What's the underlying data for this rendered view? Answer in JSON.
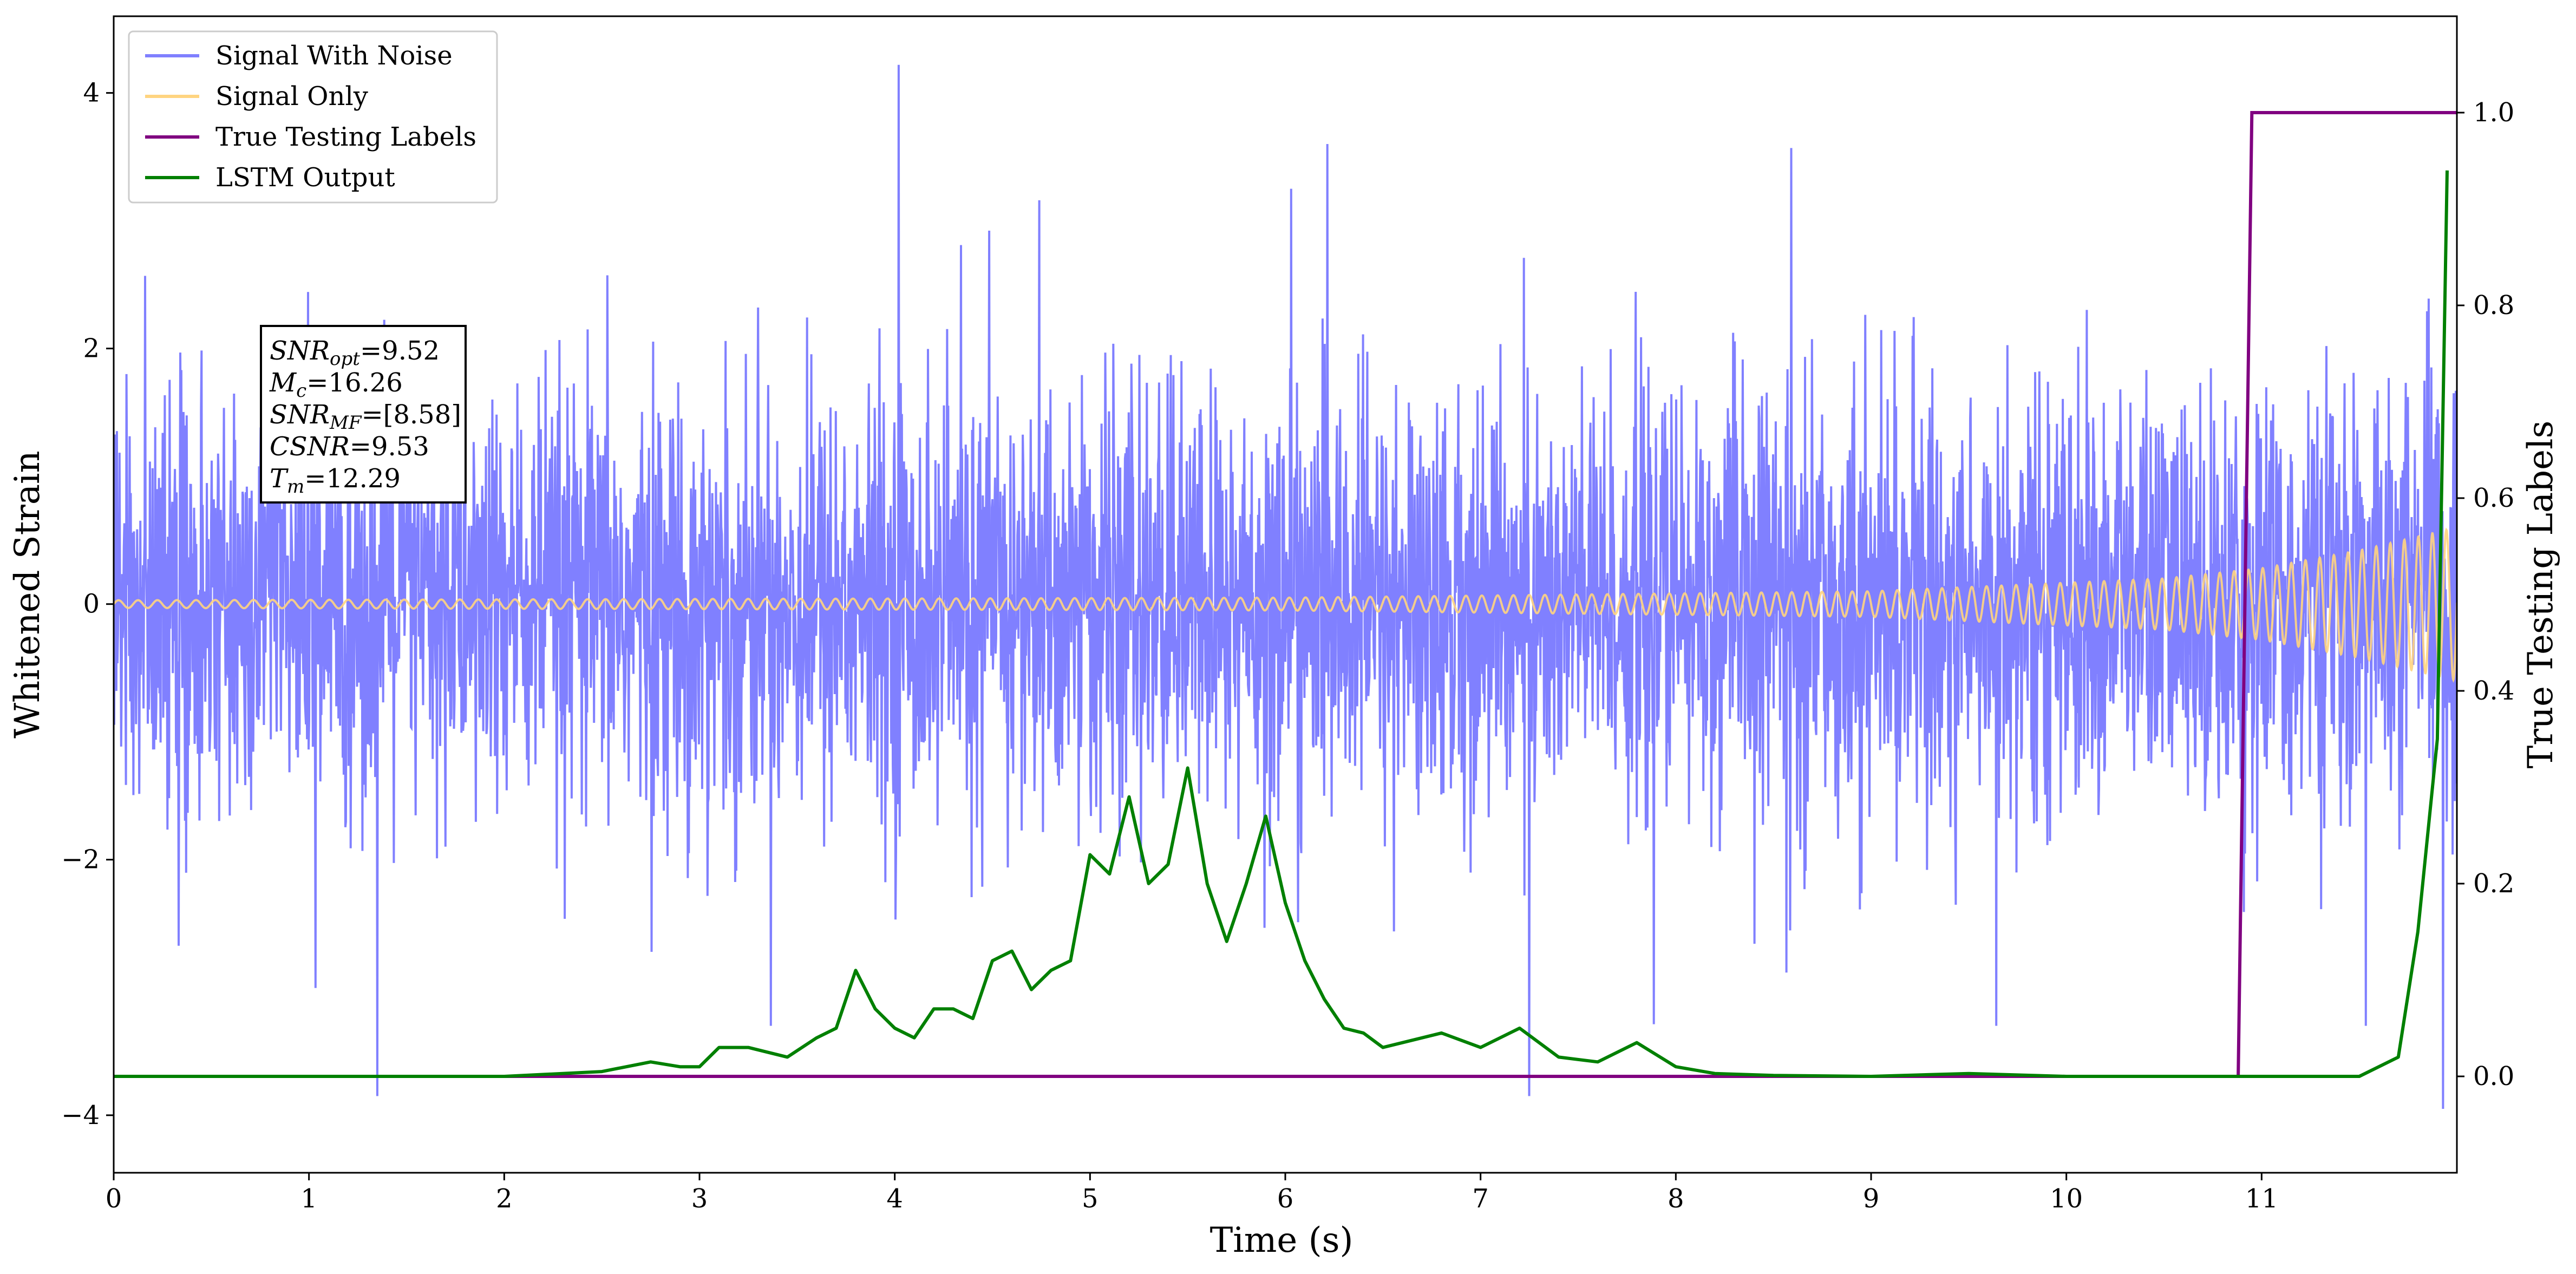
{
  "chart_data": {
    "type": "line",
    "title": "",
    "xlabel": "Time (s)",
    "ylabel": "Whitened Strain",
    "y2label": "True Testing Labels",
    "xlim": [
      0,
      12.0
    ],
    "ylim": [
      -4.45,
      4.6
    ],
    "y2lim": [
      -0.1,
      1.1
    ],
    "xticks": [
      0,
      1,
      2,
      3,
      4,
      5,
      6,
      7,
      8,
      9,
      10,
      11
    ],
    "xtick_labels": [
      "0",
      "1",
      "2",
      "3",
      "4",
      "5",
      "6",
      "7",
      "8",
      "9",
      "10",
      "11"
    ],
    "yticks": [
      -4,
      -2,
      0,
      2,
      4
    ],
    "ytick_labels": [
      "−4",
      "−2",
      "0",
      "2",
      "4"
    ],
    "y2ticks": [
      0.0,
      0.2,
      0.4,
      0.6,
      0.8,
      1.0
    ],
    "y2tick_labels": [
      "0.0",
      "0.2",
      "0.4",
      "0.6",
      "0.8",
      "1.0"
    ],
    "grid": false,
    "legend_position": "top-left",
    "series": [
      {
        "name": "Signal With Noise",
        "axis": "left",
        "color": "#8080ff",
        "description_points": {
          "typical_range": [
            -1.6,
            1.6
          ],
          "notable_spikes": [
            [
              1.35,
              -3.85
            ],
            [
              4.02,
              4.22
            ],
            [
              7.25,
              -3.85
            ],
            [
              6.03,
              3.25
            ],
            [
              11.93,
              -3.95
            ]
          ]
        }
      },
      {
        "name": "Signal Only",
        "axis": "left",
        "color": "#ffd480",
        "envelope": [
          [
            0,
            0.03
          ],
          [
            6,
            0.05
          ],
          [
            9,
            0.1
          ],
          [
            10.5,
            0.2
          ],
          [
            11.0,
            0.28
          ],
          [
            11.5,
            0.42
          ],
          [
            12.0,
            0.6
          ]
        ]
      },
      {
        "name": "True Testing Labels",
        "axis": "right",
        "color": "#800080",
        "x": [
          0,
          10.88,
          10.95,
          12.0
        ],
        "y": [
          0.0,
          0.0,
          1.0,
          1.0
        ]
      },
      {
        "name": "LSTM Output",
        "axis": "right",
        "color": "#008000",
        "x": [
          0,
          2.0,
          2.5,
          2.75,
          2.9,
          3.0,
          3.1,
          3.25,
          3.45,
          3.6,
          3.7,
          3.8,
          3.9,
          4.0,
          4.1,
          4.2,
          4.3,
          4.4,
          4.5,
          4.6,
          4.7,
          4.8,
          4.9,
          5.0,
          5.1,
          5.2,
          5.3,
          5.4,
          5.5,
          5.6,
          5.7,
          5.8,
          5.9,
          6.0,
          6.1,
          6.2,
          6.3,
          6.4,
          6.5,
          6.6,
          6.8,
          7.0,
          7.2,
          7.4,
          7.6,
          7.8,
          8.0,
          8.2,
          8.5,
          9.0,
          9.5,
          10.0,
          11.0,
          11.5,
          11.7,
          11.8,
          11.9,
          11.95
        ],
        "y": [
          0.0,
          0.0,
          0.005,
          0.015,
          0.01,
          0.01,
          0.03,
          0.03,
          0.02,
          0.04,
          0.05,
          0.11,
          0.07,
          0.05,
          0.04,
          0.07,
          0.07,
          0.06,
          0.12,
          0.13,
          0.09,
          0.11,
          0.12,
          0.23,
          0.21,
          0.29,
          0.2,
          0.22,
          0.32,
          0.2,
          0.14,
          0.2,
          0.27,
          0.18,
          0.12,
          0.08,
          0.05,
          0.045,
          0.03,
          0.035,
          0.045,
          0.03,
          0.05,
          0.02,
          0.015,
          0.035,
          0.01,
          0.003,
          0.001,
          0.0,
          0.003,
          0.0,
          0.0,
          0.0,
          0.02,
          0.15,
          0.35,
          0.94
        ]
      }
    ],
    "annotation": {
      "lines": [
        {
          "sym": "SNR",
          "sub": "opt",
          "value": "=9.52"
        },
        {
          "sym": "M",
          "sub": "c",
          "value": "=16.26"
        },
        {
          "sym": "SNR",
          "sub": "MF",
          "value": "=[8.58]"
        },
        {
          "sym": "CSNR",
          "sub": "",
          "value": "=9.53"
        },
        {
          "sym": "T",
          "sub": "m",
          "value": "=12.29"
        }
      ]
    }
  }
}
